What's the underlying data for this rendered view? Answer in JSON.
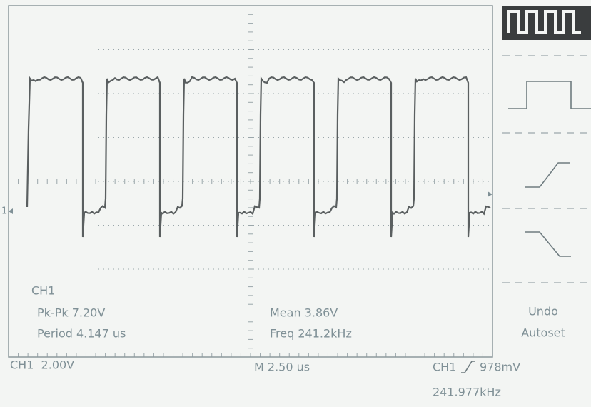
{
  "screen": {
    "measurements": {
      "channel": "CH1",
      "pk_pk": "Pk-Pk 7.20V",
      "period": "Period 4.147 us",
      "mean": "Mean 3.86V",
      "freq": "Freq 241.2kHz"
    },
    "ground_marker": "1",
    "status": {
      "ch1_scale": "CH1  2.00V",
      "timebase": "M 2.50 us",
      "trigger_source": "CH1",
      "trigger_level": "978mV",
      "trigger_freq": "241.977kHz"
    },
    "menu": {
      "undo": "Undo",
      "autoset": "Autoset"
    }
  }
}
